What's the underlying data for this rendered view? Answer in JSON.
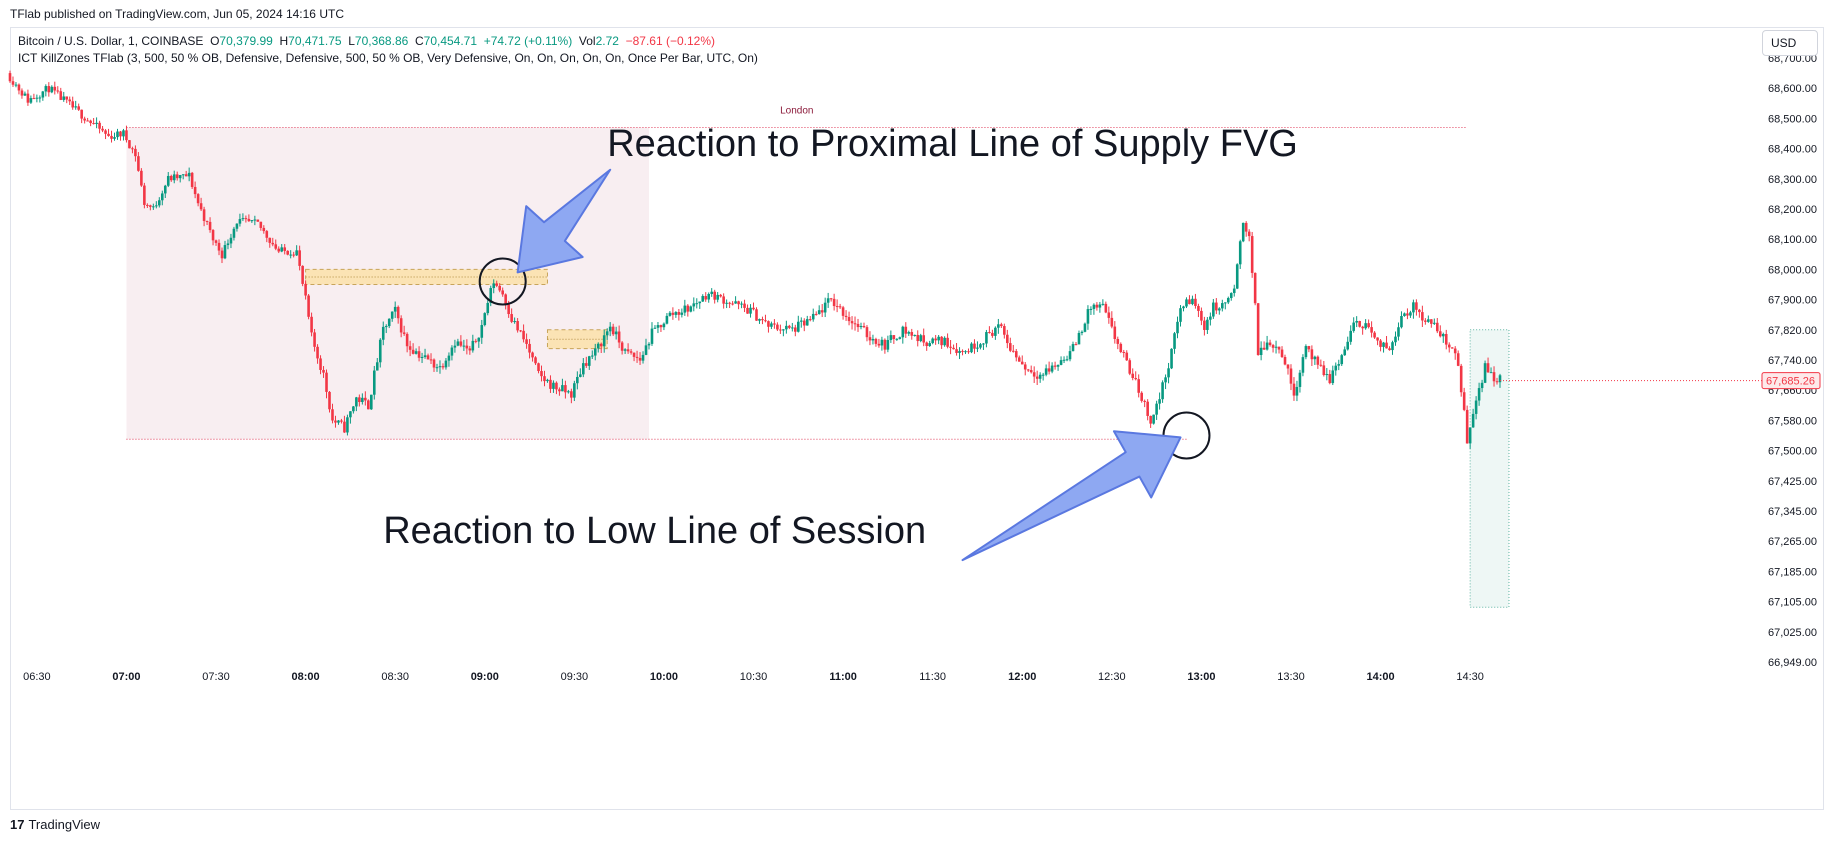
{
  "header": {
    "published": "TFlab published on TradingView.com, Jun 05, 2024 14:16 UTC",
    "currency": "USD"
  },
  "legend": {
    "symbol": "Bitcoin / U.S. Dollar, 1, COINBASE",
    "o_label": "O",
    "o_value": "70,379.99",
    "h_label": "H",
    "h_value": "70,471.75",
    "l_label": "L",
    "l_value": "70,368.86",
    "c_label": "C",
    "c_value": "70,454.71",
    "change": "+74.72 (+0.11%)",
    "vol_label": "Vol",
    "vol_value": "2.72",
    "vol_change": "−87.61 (−0.12%)",
    "indicator": "ICT KillZones TFlab (3, 500, 50 % OB, Defensive, Defensive, 500, 50 % OB, Very Defensive, On, On, On, On, On, Once Per Bar, UTC, On)"
  },
  "footer": {
    "logo_glyph": "17",
    "brand": "TradingView"
  },
  "colors": {
    "up": "#089981",
    "down": "#f23645",
    "session_fill": "#f8eef1",
    "session_line": "#e03c5a",
    "fvg_fill": "#fbe3b4",
    "arrow_fill": "#8ea8f2",
    "arrow_stroke": "#5a78e0",
    "next_session_fill": "#eef7f5"
  },
  "chart_data": {
    "type": "candlestick",
    "symbol": "Bitcoin / U.S. Dollar",
    "interval": "1",
    "ylim": [
      66949,
      68780
    ],
    "yticks": [
      "68,700.00",
      "68,600.00",
      "68,500.00",
      "68,400.00",
      "68,300.00",
      "68,200.00",
      "68,100.00",
      "68,000.00",
      "67,900.00",
      "67,820.00",
      "67,740.00",
      "67,660.00",
      "67,580.00",
      "67,500.00",
      "67,425.00",
      "67,345.00",
      "67,265.00",
      "67,185.00",
      "67,105.00",
      "67,025.00",
      "66,949.00"
    ],
    "ytick_values": [
      68700,
      68600,
      68500,
      68400,
      68300,
      68200,
      68100,
      68000,
      67900,
      67820,
      67740,
      67660,
      67580,
      67500,
      67425,
      67345,
      67265,
      67185,
      67105,
      67025,
      66949
    ],
    "xticks": [
      "06:30",
      "07:00",
      "07:30",
      "08:00",
      "08:30",
      "09:00",
      "09:30",
      "10:00",
      "10:30",
      "11:00",
      "11:30",
      "12:00",
      "12:30",
      "13:00",
      "13:30",
      "14:00",
      "14:30"
    ],
    "xtick_bold": [
      false,
      true,
      false,
      true,
      false,
      true,
      false,
      true,
      false,
      true,
      false,
      true,
      false,
      true,
      false,
      true,
      false
    ],
    "xrange": [
      "06:21",
      "14:40"
    ],
    "last_price": "67,685.26",
    "last_value": 67685.26,
    "price_path": [
      [
        "06:21",
        68650
      ],
      [
        "06:28",
        68560
      ],
      [
        "06:35",
        68600
      ],
      [
        "06:45",
        68520
      ],
      [
        "06:55",
        68440
      ],
      [
        "07:00",
        68450
      ],
      [
        "07:04",
        68380
      ],
      [
        "07:07",
        68220
      ],
      [
        "07:10",
        68200
      ],
      [
        "07:15",
        68300
      ],
      [
        "07:22",
        68310
      ],
      [
        "07:25",
        68220
      ],
      [
        "07:30",
        68100
      ],
      [
        "07:33",
        68050
      ],
      [
        "07:38",
        68160
      ],
      [
        "07:45",
        68150
      ],
      [
        "07:52",
        68060
      ],
      [
        "07:58",
        68060
      ],
      [
        "08:00",
        67950
      ],
      [
        "08:03",
        67800
      ],
      [
        "08:07",
        67700
      ],
      [
        "08:10",
        67580
      ],
      [
        "08:14",
        67560
      ],
      [
        "08:18",
        67640
      ],
      [
        "08:22",
        67620
      ],
      [
        "08:27",
        67820
      ],
      [
        "08:31",
        67870
      ],
      [
        "08:35",
        67780
      ],
      [
        "08:40",
        67750
      ],
      [
        "08:46",
        67720
      ],
      [
        "08:51",
        67790
      ],
      [
        "08:56",
        67760
      ],
      [
        "09:00",
        67830
      ],
      [
        "09:04",
        67960
      ],
      [
        "09:07",
        67920
      ],
      [
        "09:10",
        67850
      ],
      [
        "09:15",
        67780
      ],
      [
        "09:19",
        67700
      ],
      [
        "09:24",
        67670
      ],
      [
        "09:30",
        67650
      ],
      [
        "09:34",
        67730
      ],
      [
        "09:38",
        67760
      ],
      [
        "09:43",
        67830
      ],
      [
        "09:48",
        67760
      ],
      [
        "09:53",
        67740
      ],
      [
        "09:57",
        67810
      ],
      [
        "10:03",
        67860
      ],
      [
        "10:10",
        67880
      ],
      [
        "10:16",
        67920
      ],
      [
        "10:24",
        67890
      ],
      [
        "10:30",
        67870
      ],
      [
        "10:36",
        67830
      ],
      [
        "10:44",
        67820
      ],
      [
        "10:51",
        67850
      ],
      [
        "10:57",
        67900
      ],
      [
        "11:03",
        67850
      ],
      [
        "11:10",
        67800
      ],
      [
        "11:15",
        67780
      ],
      [
        "11:21",
        67820
      ],
      [
        "11:28",
        67790
      ],
      [
        "11:35",
        67790
      ],
      [
        "11:41",
        67760
      ],
      [
        "11:47",
        67790
      ],
      [
        "11:53",
        67830
      ],
      [
        "11:58",
        67760
      ],
      [
        "12:02",
        67720
      ],
      [
        "12:07",
        67700
      ],
      [
        "12:13",
        67730
      ],
      [
        "12:18",
        67770
      ],
      [
        "12:24",
        67880
      ],
      [
        "12:28",
        67880
      ],
      [
        "12:32",
        67800
      ],
      [
        "12:36",
        67730
      ],
      [
        "12:40",
        67660
      ],
      [
        "12:44",
        67580
      ],
      [
        "12:47",
        67640
      ],
      [
        "12:51",
        67760
      ],
      [
        "12:54",
        67880
      ],
      [
        "12:58",
        67900
      ],
      [
        "13:02",
        67830
      ],
      [
        "13:05",
        67880
      ],
      [
        "13:08",
        67880
      ],
      [
        "13:12",
        67930
      ],
      [
        "13:15",
        68160
      ],
      [
        "13:17",
        68110
      ],
      [
        "13:20",
        67760
      ],
      [
        "13:24",
        67790
      ],
      [
        "13:28",
        67760
      ],
      [
        "13:32",
        67650
      ],
      [
        "13:36",
        67780
      ],
      [
        "13:40",
        67720
      ],
      [
        "13:44",
        67690
      ],
      [
        "13:48",
        67750
      ],
      [
        "13:52",
        67830
      ],
      [
        "13:56",
        67840
      ],
      [
        "14:00",
        67780
      ],
      [
        "14:04",
        67770
      ],
      [
        "14:08",
        67860
      ],
      [
        "14:12",
        67880
      ],
      [
        "14:16",
        67850
      ],
      [
        "14:20",
        67820
      ],
      [
        "14:24",
        67780
      ],
      [
        "14:27",
        67730
      ],
      [
        "14:30",
        67530
      ],
      [
        "14:33",
        67640
      ],
      [
        "14:36",
        67720
      ],
      [
        "14:40",
        67690
      ]
    ],
    "session": {
      "label": "London",
      "start": "07:00",
      "end": "09:55",
      "high": 68470,
      "low": 67530,
      "high_line_end": "14:29",
      "low_line_end": "12:55"
    },
    "fvgs": [
      {
        "start": "08:00",
        "end": "09:21",
        "top": 68000,
        "bottom": 67950
      },
      {
        "start": "09:21",
        "end": "09:41",
        "top": 67820,
        "bottom": 67770
      }
    ],
    "next_session_box": {
      "start": "14:30",
      "end": "14:43",
      "top": 67820,
      "bottom": 67090
    },
    "circles": [
      {
        "time": "09:06",
        "price": 67960
      },
      {
        "time": "12:55",
        "price": 67540
      }
    ],
    "annotations": [
      {
        "text": "Reaction to Proximal Line of Supply FVG",
        "time": "09:41",
        "price": 68375
      },
      {
        "text": "Reaction to Low Line of Session",
        "time": "08:26",
        "price": 67260
      }
    ]
  }
}
